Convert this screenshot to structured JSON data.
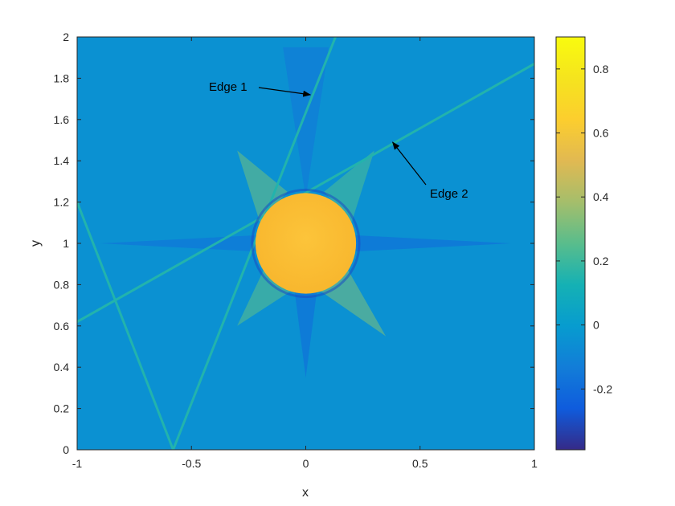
{
  "chart_data": {
    "type": "heatmap",
    "xlabel": "x",
    "ylabel": "y",
    "xlim": [
      -1,
      1
    ],
    "ylim": [
      0,
      2
    ],
    "x_ticks": [
      -1,
      -0.5,
      0,
      0.5,
      1
    ],
    "y_ticks": [
      0,
      0.2,
      0.4,
      0.6,
      0.8,
      1,
      1.2,
      1.4,
      1.6,
      1.8,
      2
    ],
    "x_tick_labels": [
      "-1",
      "-0.5",
      "0",
      "0.5",
      "1"
    ],
    "y_tick_labels": [
      "0",
      "0.2",
      "0.4",
      "0.6",
      "0.8",
      "1",
      "1.2",
      "1.4",
      "1.6",
      "1.8",
      "2"
    ],
    "colormap": "parula",
    "colorbar": {
      "clim": [
        -0.39,
        0.9
      ],
      "ticks": [
        -0.2,
        0,
        0.2,
        0.4,
        0.6,
        0.8
      ],
      "tick_labels": [
        "-0.2",
        "0",
        "0.2",
        "0.4",
        "0.6",
        "0.8"
      ]
    },
    "background_value": -0.05,
    "disk": {
      "center": [
        0,
        1
      ],
      "radius": 0.22,
      "value": 0.72
    },
    "edges": [
      {
        "from": [
          -0.58,
          0
        ],
        "to": [
          0.13,
          2.0
        ],
        "value": 0.15
      },
      {
        "from": [
          -1.0,
          0.62
        ],
        "to": [
          1.0,
          1.87
        ],
        "value": 0.15
      },
      {
        "from": [
          -1.0,
          1.2
        ],
        "to": [
          -0.58,
          0
        ],
        "value": 0.15
      }
    ],
    "annotations": [
      {
        "text": "Edge 1",
        "arrow_to": [
          0.02,
          1.72
        ]
      },
      {
        "text": "Edge 2",
        "arrow_to": [
          0.38,
          1.49
        ]
      }
    ]
  }
}
